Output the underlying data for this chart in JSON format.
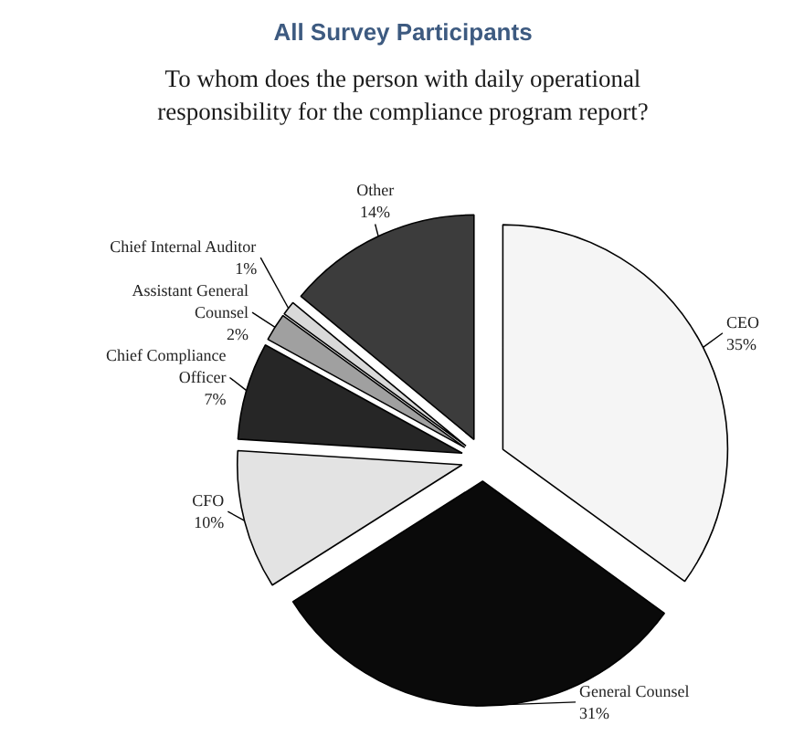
{
  "chart_data": {
    "type": "pie",
    "title": "All Survey Participants",
    "subtitle": "To whom does the person with daily operational responsibility for the compliance program report?",
    "categories": [
      "CEO",
      "General Counsel",
      "CFO",
      "Chief Compliance Officer",
      "Assistant General Counsel",
      "Chief Internal Auditor",
      "Other"
    ],
    "values": [
      35,
      31,
      10,
      7,
      2,
      1,
      14
    ],
    "value_labels": [
      "35%",
      "31%",
      "10%",
      "7%",
      "2%",
      "1%",
      "14%"
    ],
    "colors": [
      "#f5f5f5",
      "#0a0a0a",
      "#e3e3e3",
      "#262626",
      "#a0a0a0",
      "#d9d9d9",
      "#3c3c3c"
    ]
  }
}
